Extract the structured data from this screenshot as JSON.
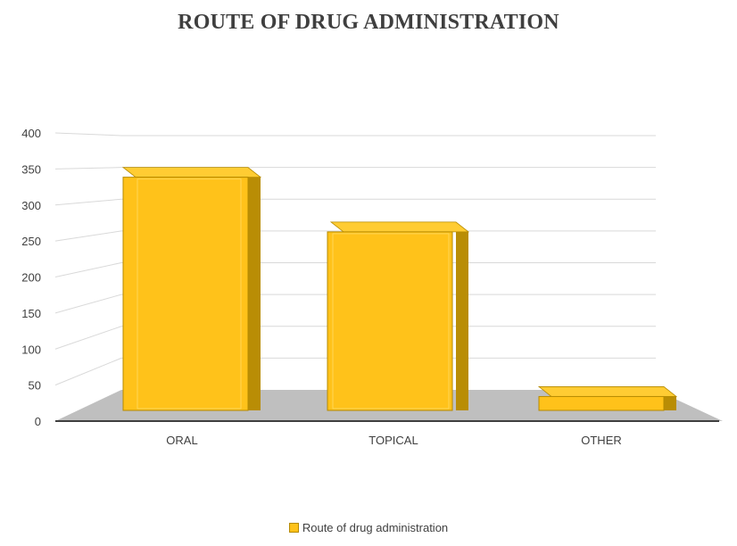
{
  "chart_data": {
    "type": "bar",
    "title": "ROUTE OF DRUG ADMINISTRATION",
    "categories": [
      "ORAL",
      "TOPICAL",
      "OTHER"
    ],
    "series": [
      {
        "name": "Route of drug administration",
        "values": [
          350,
          264,
          5
        ]
      }
    ],
    "ylim": [
      0,
      400
    ],
    "yticks": [
      0,
      50,
      100,
      150,
      200,
      250,
      300,
      350,
      400
    ],
    "grid": true,
    "legend": "bottom",
    "colors": {
      "bar_front": "#ffc21a",
      "bar_edge": "#b58a00",
      "bar_top": "#ffcc33",
      "bar_side": "#b98d05",
      "floor": "#bfbfbf",
      "grid": "#d9d9d9"
    }
  }
}
